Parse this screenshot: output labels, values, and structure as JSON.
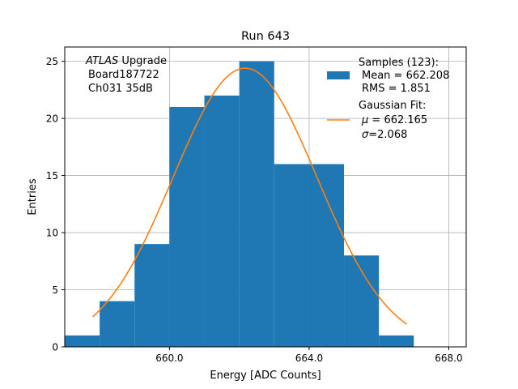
{
  "chart_data": {
    "type": "bar",
    "title": "Run 643",
    "xlabel": "Energy [ADC Counts]",
    "ylabel": "Entries",
    "xlim": [
      657.0,
      668.5
    ],
    "ylim": [
      0,
      26.25
    ],
    "grid": true,
    "xticks": [
      660.0,
      664.0,
      668.0
    ],
    "xtick_labels": [
      "660.0",
      "664.0",
      "668.0"
    ],
    "yticks": [
      0,
      5,
      10,
      15,
      20,
      25
    ],
    "ytick_labels": [
      "0",
      "5",
      "10",
      "15",
      "20",
      "25"
    ],
    "bins": [
      {
        "lo": 657,
        "hi": 658,
        "count": 1
      },
      {
        "lo": 658,
        "hi": 659,
        "count": 4
      },
      {
        "lo": 659,
        "hi": 660,
        "count": 9
      },
      {
        "lo": 660,
        "hi": 661,
        "count": 21
      },
      {
        "lo": 661,
        "hi": 662,
        "count": 22
      },
      {
        "lo": 662,
        "hi": 663,
        "count": 25
      },
      {
        "lo": 663,
        "hi": 664,
        "count": 16
      },
      {
        "lo": 664,
        "hi": 665,
        "count": 16
      },
      {
        "lo": 665,
        "hi": 666,
        "count": 8
      },
      {
        "lo": 666,
        "hi": 667,
        "count": 1
      }
    ],
    "fit": {
      "mu": 662.165,
      "sigma": 2.068,
      "amplitude": 24.4,
      "x_range": [
        657.8,
        666.8
      ]
    },
    "annotation": {
      "atlas": "ATLAS",
      "upgrade": " Upgrade",
      "board": "Board187722",
      "channel": "Ch031 35dB"
    },
    "legend": {
      "placement": "upper right",
      "samples_line1": "Samples (123):",
      "samples_line2": "Mean = 662.208",
      "samples_line3": "RMS = 1.851",
      "fit_line1": "Gaussian Fit:",
      "fit_mu_symbol": "μ",
      "fit_mu_value": " = 662.165",
      "fit_sigma_symbol": "σ",
      "fit_sigma_value": "=2.068"
    },
    "colors": {
      "bars": "#1f77b4",
      "fit": "#ff7f0e",
      "grid": "#b0b0b0"
    }
  }
}
